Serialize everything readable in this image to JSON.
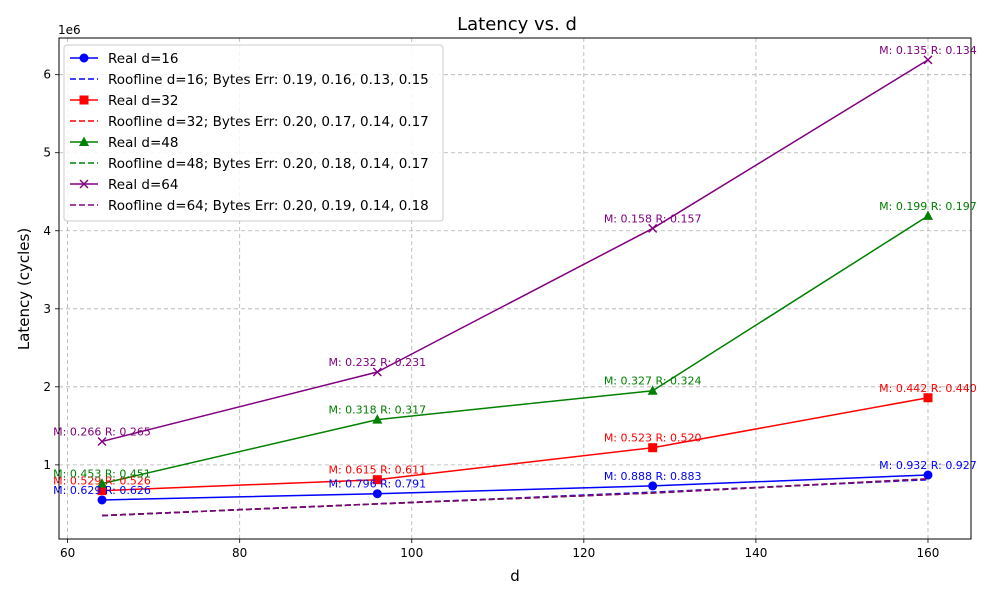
{
  "chart_data": {
    "type": "line",
    "title": "Latency vs. d",
    "xlabel": "d",
    "ylabel": "Latency (cycles)",
    "y_scale_label": "1e6",
    "xlim": [
      59,
      165
    ],
    "ylim": [
      0.05,
      6.47
    ],
    "x_ticks": [
      60,
      80,
      100,
      120,
      140,
      160
    ],
    "y_ticks": [
      1,
      2,
      3,
      4,
      5,
      6
    ],
    "grid": true,
    "legend_position": "top-left",
    "x": [
      64,
      96,
      128,
      160
    ],
    "series": [
      {
        "name": "Real d=16",
        "style": "solid",
        "marker": "circle",
        "color": "#0000ff",
        "values": [
          0.55,
          0.63,
          0.73,
          0.87
        ],
        "annotations": [
          "M: 0.629 R: 0.626",
          "M: 0.796 R: 0.791",
          "M: 0.888 R: 0.883",
          "M: 0.932 R: 0.927"
        ]
      },
      {
        "name": "Roofline d=16; Bytes Err: 0.19, 0.16, 0.13, 0.15",
        "style": "dashed",
        "color": "#0000ff",
        "values": [
          0.35,
          0.5,
          0.65,
          0.81
        ]
      },
      {
        "name": "Real d=32",
        "style": "solid",
        "marker": "square",
        "color": "#ff0000",
        "values": [
          0.67,
          0.81,
          1.22,
          1.86
        ],
        "annotations": [
          "M: 0.529 R: 0.526",
          "M: 0.615 R: 0.611",
          "M: 0.523 R: 0.520",
          "M: 0.442 R: 0.440"
        ]
      },
      {
        "name": "Roofline d=32; Bytes Err: 0.20, 0.17, 0.14, 0.17",
        "style": "dashed",
        "color": "#ff0000",
        "values": [
          0.35,
          0.5,
          0.64,
          0.82
        ]
      },
      {
        "name": "Real d=48",
        "style": "solid",
        "marker": "triangle",
        "color": "#008000",
        "values": [
          0.76,
          1.58,
          1.95,
          4.19
        ],
        "annotations": [
          "M: 0.453 R: 0.451",
          "M: 0.318 R: 0.317",
          "M: 0.327 R: 0.324",
          "M: 0.199 R: 0.197"
        ]
      },
      {
        "name": "Roofline d=48; Bytes Err: 0.20, 0.18, 0.14, 0.17",
        "style": "dashed",
        "color": "#008000",
        "values": [
          0.35,
          0.5,
          0.64,
          0.82
        ]
      },
      {
        "name": "Real d=64",
        "style": "solid",
        "marker": "x",
        "color": "#800080",
        "values": [
          1.3,
          2.19,
          4.03,
          6.19
        ],
        "annotations": [
          "M: 0.266 R: 0.265",
          "M: 0.232 R: 0.231",
          "M: 0.158 R: 0.157",
          "M: 0.135 R: 0.134"
        ]
      },
      {
        "name": "Roofline d=64; Bytes Err: 0.20, 0.19, 0.14, 0.18",
        "style": "dashed",
        "color": "#800080",
        "values": [
          0.35,
          0.5,
          0.64,
          0.82
        ]
      }
    ]
  }
}
